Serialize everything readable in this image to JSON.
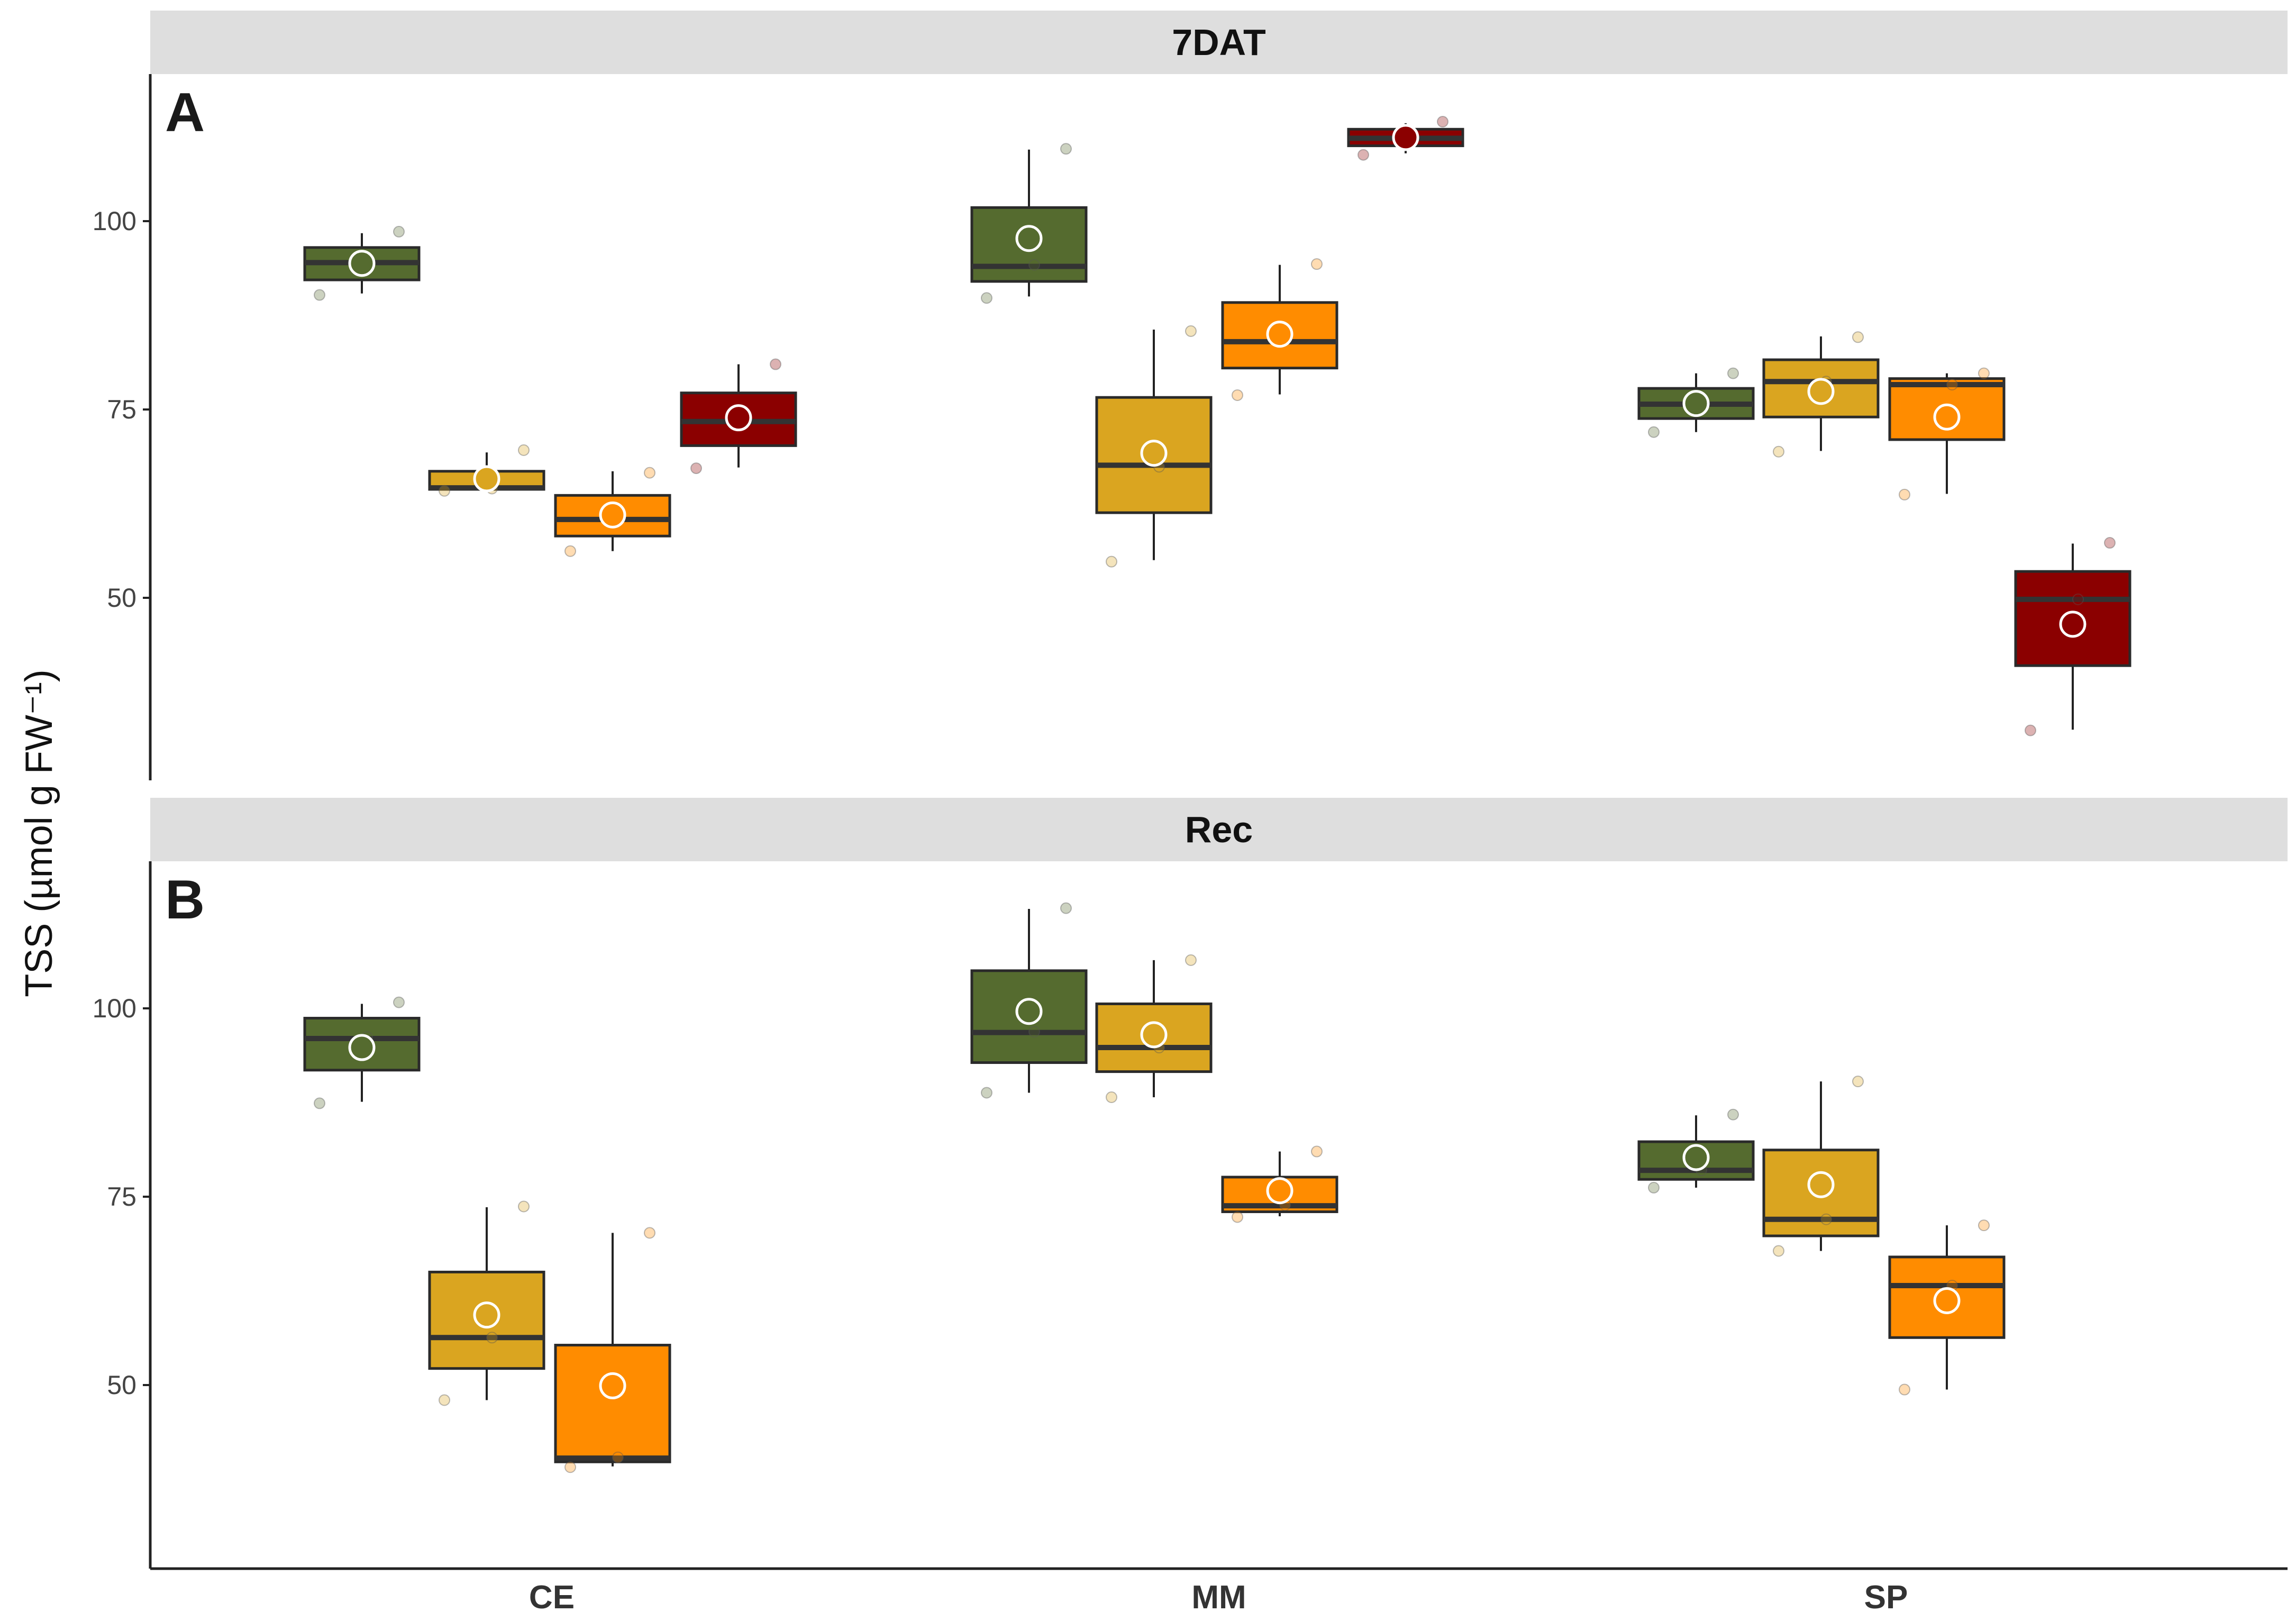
{
  "chart_data": [
    {
      "type": "box",
      "panel_label": "A",
      "title": "7DAT",
      "xlabel": "",
      "ylabel": "TSS (µmol g FW⁻¹)",
      "ylim": [
        28,
        120
      ],
      "yticks": [
        50,
        75,
        100
      ],
      "categories": [
        "CE",
        "MM",
        "SP"
      ],
      "series_colors": [
        "#556B2F",
        "#DAA520",
        "#FF8C00",
        "#8B0000"
      ],
      "groups": [
        {
          "category": "CE",
          "boxes": [
            {
              "q1": 92.2,
              "median": 94.5,
              "q3": 96.5,
              "wlow": 90.4,
              "whigh": 98.4,
              "mean": 94.4,
              "points": [
                90.2,
                94.6,
                98.6
              ]
            },
            {
              "q1": 64.4,
              "median": 64.6,
              "q3": 66.8,
              "wlow": 64.3,
              "whigh": 69.3,
              "mean": 65.8,
              "points": [
                64.2,
                64.5,
                69.6
              ]
            },
            {
              "q1": 58.2,
              "median": 60.4,
              "q3": 63.6,
              "wlow": 56.2,
              "whigh": 66.8,
              "mean": 61.0,
              "points": [
                56.2,
                60.5,
                66.6
              ]
            },
            {
              "q1": 70.2,
              "median": 73.4,
              "q3": 77.2,
              "wlow": 67.3,
              "whigh": 81.0,
              "mean": 73.9,
              "points": [
                67.2,
                73.5,
                81.0
              ]
            }
          ]
        },
        {
          "category": "MM",
          "boxes": [
            {
              "q1": 92.0,
              "median": 94.0,
              "q3": 101.8,
              "wlow": 90.0,
              "whigh": 109.5,
              "mean": 97.7,
              "points": [
                89.8,
                94.2,
                109.6
              ]
            },
            {
              "q1": 61.3,
              "median": 67.6,
              "q3": 76.6,
              "wlow": 55.0,
              "whigh": 85.6,
              "mean": 69.2,
              "points": [
                54.8,
                67.4,
                85.4
              ]
            },
            {
              "q1": 80.5,
              "median": 84.0,
              "q3": 89.2,
              "wlow": 77.0,
              "whigh": 94.2,
              "mean": 85.0,
              "points": [
                76.9,
                84.2,
                94.3
              ]
            },
            {
              "q1": 110.0,
              "median": 111.0,
              "q3": 112.2,
              "wlow": 109.0,
              "whigh": 113.0,
              "mean": 111.1,
              "points": [
                108.8,
                110.8,
                113.2
              ]
            }
          ]
        },
        {
          "category": "SP",
          "boxes": [
            {
              "q1": 73.8,
              "median": 75.7,
              "q3": 77.8,
              "wlow": 72.0,
              "whigh": 79.8,
              "mean": 75.8,
              "points": [
                72.0,
                75.6,
                79.8
              ]
            },
            {
              "q1": 74.0,
              "median": 78.7,
              "q3": 81.6,
              "wlow": 69.5,
              "whigh": 84.7,
              "mean": 77.4,
              "points": [
                69.4,
                78.7,
                84.6
              ]
            },
            {
              "q1": 71.0,
              "median": 78.3,
              "q3": 79.1,
              "wlow": 63.8,
              "whigh": 79.8,
              "mean": 74.0,
              "points": [
                63.7,
                78.3,
                79.8
              ]
            },
            {
              "q1": 41.0,
              "median": 49.8,
              "q3": 53.5,
              "wlow": 32.5,
              "whigh": 57.2,
              "mean": 46.5,
              "points": [
                32.4,
                49.8,
                57.3
              ]
            }
          ]
        }
      ]
    },
    {
      "type": "box",
      "panel_label": "B",
      "title": "Rec",
      "xlabel": "",
      "ylabel": "TSS (µmol g FW⁻¹)",
      "ylim": [
        28,
        120
      ],
      "yticks": [
        50,
        75,
        100
      ],
      "categories": [
        "CE",
        "MM",
        "SP"
      ],
      "series_colors": [
        "#556B2F",
        "#DAA520",
        "#FF8C00",
        "#8B0000"
      ],
      "groups": [
        {
          "category": "CE",
          "boxes": [
            {
              "q1": 91.8,
              "median": 96.0,
              "q3": 98.7,
              "wlow": 87.6,
              "whigh": 100.6,
              "mean": 94.8,
              "points": [
                87.4,
                96.2,
                100.8
              ]
            },
            {
              "q1": 52.2,
              "median": 56.3,
              "q3": 65.0,
              "wlow": 48.0,
              "whigh": 73.6,
              "mean": 59.3,
              "points": [
                48.0,
                56.3,
                73.7
              ]
            },
            {
              "q1": 39.8,
              "median": 40.3,
              "q3": 55.3,
              "wlow": 39.2,
              "whigh": 70.2,
              "mean": 49.9,
              "points": [
                39.1,
                40.4,
                70.2
              ]
            }
          ]
        },
        {
          "category": "MM",
          "boxes": [
            {
              "q1": 92.8,
              "median": 96.8,
              "q3": 105.0,
              "wlow": 88.8,
              "whigh": 113.2,
              "mean": 99.6,
              "points": [
                88.8,
                96.9,
                113.3
              ]
            },
            {
              "q1": 91.6,
              "median": 94.8,
              "q3": 100.6,
              "wlow": 88.2,
              "whigh": 106.4,
              "mean": 96.5,
              "points": [
                88.2,
                94.8,
                106.4
              ]
            },
            {
              "q1": 73.0,
              "median": 73.8,
              "q3": 77.6,
              "wlow": 72.4,
              "whigh": 81.0,
              "mean": 75.8,
              "points": [
                72.3,
                73.9,
                81.0
              ]
            }
          ]
        },
        {
          "category": "SP",
          "boxes": [
            {
              "q1": 77.3,
              "median": 78.5,
              "q3": 82.3,
              "wlow": 76.2,
              "whigh": 85.8,
              "mean": 80.2,
              "points": [
                76.2,
                78.5,
                85.9
              ]
            },
            {
              "q1": 69.8,
              "median": 72.0,
              "q3": 81.2,
              "wlow": 67.8,
              "whigh": 90.3,
              "mean": 76.6,
              "points": [
                67.8,
                72.0,
                90.3
              ]
            },
            {
              "q1": 56.3,
              "median": 63.2,
              "q3": 67.0,
              "wlow": 49.4,
              "whigh": 71.2,
              "mean": 61.2,
              "points": [
                49.4,
                63.2,
                71.2
              ]
            }
          ]
        }
      ]
    }
  ]
}
